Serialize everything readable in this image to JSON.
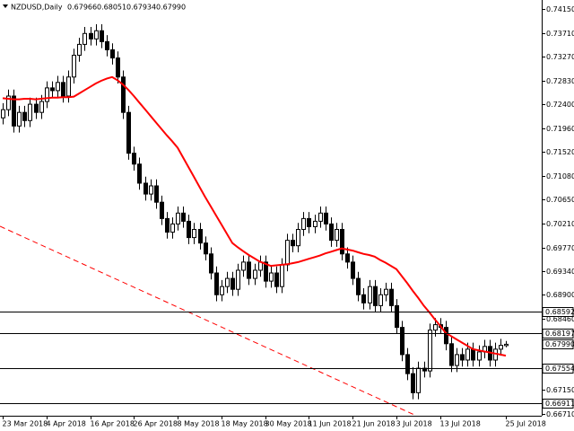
{
  "chart_data": {
    "type": "candlestick",
    "title": "NZDUSD,Daily",
    "categories": [
      "23 Mar 2018",
      null,
      null,
      null,
      null,
      null,
      null,
      null,
      "4 Apr 2018",
      null,
      null,
      null,
      null,
      null,
      null,
      null,
      "16 Apr 2018",
      null,
      null,
      null,
      null,
      null,
      null,
      null,
      "26 Apr 2018",
      null,
      null,
      null,
      null,
      null,
      null,
      null,
      "8 May 2018",
      null,
      null,
      null,
      null,
      null,
      null,
      null,
      "18 May 2018",
      null,
      null,
      null,
      null,
      null,
      null,
      null,
      "30 May 2018",
      null,
      null,
      null,
      null,
      null,
      null,
      null,
      "11 Jun 2018",
      null,
      null,
      null,
      null,
      null,
      null,
      null,
      "21 Jun 2018",
      null,
      null,
      null,
      null,
      null,
      null,
      null,
      "3 Jul 2018",
      null,
      null,
      null,
      null,
      null,
      null,
      null,
      "13 Jul 2018",
      null,
      null,
      null,
      null,
      null,
      null,
      null,
      null,
      null,
      null,
      null,
      "25 Jul 2018"
    ],
    "open": [
      0.7215,
      0.723,
      0.7255,
      0.72,
      0.7225,
      0.721,
      0.724,
      0.7225,
      0.7245,
      0.727,
      0.7265,
      0.728,
      0.7255,
      0.729,
      0.733,
      0.735,
      0.737,
      0.736,
      0.7375,
      0.7355,
      0.734,
      0.7325,
      0.729,
      0.7225,
      0.715,
      0.713,
      0.7095,
      0.7075,
      0.709,
      0.706,
      0.703,
      0.7005,
      0.702,
      0.704,
      0.7025,
      0.6995,
      0.701,
      0.6985,
      0.6965,
      0.693,
      0.689,
      0.6905,
      0.692,
      0.69,
      0.6935,
      0.695,
      0.692,
      0.6935,
      0.695,
      0.6915,
      0.693,
      0.6905,
      0.6945,
      0.699,
      0.698,
      0.701,
      0.703,
      0.7015,
      0.7025,
      0.704,
      0.702,
      0.699,
      0.701,
      0.6965,
      0.695,
      0.692,
      0.689,
      0.6875,
      0.6905,
      0.687,
      0.689,
      0.69,
      0.687,
      0.683,
      0.678,
      0.6745,
      0.671,
      0.6755,
      0.675,
      0.6825,
      0.6835,
      0.683,
      0.68,
      0.676,
      0.678,
      0.677,
      0.679,
      0.677,
      0.6785,
      0.6795,
      0.677,
      0.679,
      0.67966
    ],
    "high": [
      0.7242,
      0.7267,
      0.7267,
      0.7237,
      0.7237,
      0.7252,
      0.7252,
      0.7257,
      0.7282,
      0.7282,
      0.7292,
      0.7292,
      0.7302,
      0.7342,
      0.7362,
      0.7382,
      0.7382,
      0.7387,
      0.7387,
      0.7367,
      0.7352,
      0.7337,
      0.7302,
      0.7237,
      0.7162,
      0.7142,
      0.7107,
      0.7102,
      0.7102,
      0.7072,
      0.7042,
      0.7032,
      0.7052,
      0.7052,
      0.7037,
      0.7022,
      0.7022,
      0.6997,
      0.6977,
      0.6942,
      0.6917,
      0.6932,
      0.6932,
      0.6947,
      0.6962,
      0.6962,
      0.6947,
      0.6962,
      0.6962,
      0.6942,
      0.6942,
      0.6957,
      0.7002,
      0.7002,
      0.7022,
      0.7042,
      0.7042,
      0.7037,
      0.7052,
      0.7052,
      0.7032,
      0.7022,
      0.7022,
      0.6977,
      0.6962,
      0.6932,
      0.6902,
      0.6917,
      0.6917,
      0.6902,
      0.6912,
      0.6912,
      0.6882,
      0.6842,
      0.6792,
      0.6757,
      0.6767,
      0.6767,
      0.6837,
      0.6847,
      0.6847,
      0.6842,
      0.6812,
      0.6792,
      0.6792,
      0.6802,
      0.6802,
      0.6797,
      0.6807,
      0.6807,
      0.6802,
      0.6809,
      0.68051
    ],
    "low": [
      0.7203,
      0.7218,
      0.7188,
      0.7188,
      0.7198,
      0.7198,
      0.7213,
      0.7213,
      0.7233,
      0.7253,
      0.7253,
      0.7243,
      0.7243,
      0.7278,
      0.7318,
      0.7338,
      0.7348,
      0.7348,
      0.7343,
      0.7328,
      0.7313,
      0.7278,
      0.7213,
      0.7138,
      0.7118,
      0.7083,
      0.7063,
      0.7063,
      0.7048,
      0.7018,
      0.6993,
      0.6993,
      0.7008,
      0.7013,
      0.6983,
      0.6983,
      0.6973,
      0.6953,
      0.6918,
      0.6878,
      0.6878,
      0.6893,
      0.6888,
      0.6888,
      0.6923,
      0.6908,
      0.6908,
      0.6923,
      0.6903,
      0.6903,
      0.6893,
      0.6893,
      0.6933,
      0.6968,
      0.6968,
      0.6998,
      0.7003,
      0.7003,
      0.7013,
      0.7008,
      0.6978,
      0.6978,
      0.6953,
      0.6938,
      0.6908,
      0.6878,
      0.6863,
      0.6863,
      0.6858,
      0.6858,
      0.6878,
      0.6858,
      0.6818,
      0.6768,
      0.6733,
      0.6698,
      0.6698,
      0.6738,
      0.6738,
      0.6813,
      0.6818,
      0.6788,
      0.6748,
      0.6748,
      0.6758,
      0.6758,
      0.6758,
      0.6758,
      0.6773,
      0.6758,
      0.6758,
      0.6778,
      0.67934
    ],
    "close": [
      0.723,
      0.7255,
      0.72,
      0.7225,
      0.721,
      0.724,
      0.7225,
      0.7245,
      0.727,
      0.7265,
      0.728,
      0.7255,
      0.729,
      0.733,
      0.735,
      0.737,
      0.736,
      0.7375,
      0.7355,
      0.734,
      0.7325,
      0.729,
      0.7225,
      0.715,
      0.713,
      0.7095,
      0.7075,
      0.709,
      0.706,
      0.703,
      0.7005,
      0.702,
      0.704,
      0.7025,
      0.6995,
      0.701,
      0.6985,
      0.6965,
      0.693,
      0.689,
      0.6905,
      0.692,
      0.69,
      0.6935,
      0.695,
      0.692,
      0.6935,
      0.695,
      0.6915,
      0.693,
      0.6905,
      0.6945,
      0.699,
      0.698,
      0.701,
      0.703,
      0.7015,
      0.7025,
      0.704,
      0.702,
      0.699,
      0.701,
      0.6965,
      0.695,
      0.692,
      0.689,
      0.6875,
      0.6905,
      0.687,
      0.689,
      0.69,
      0.687,
      0.683,
      0.678,
      0.6745,
      0.671,
      0.6755,
      0.675,
      0.6825,
      0.6835,
      0.683,
      0.68,
      0.676,
      0.678,
      0.677,
      0.679,
      0.677,
      0.6785,
      0.6795,
      0.677,
      0.679,
      0.6797,
      0.6799
    ],
    "bull_color": "#ffffff",
    "bear_color": "#000000",
    "wick_color": "#000000",
    "moving_average": {
      "color": "#ff0000",
      "values": [
        0.7251,
        0.725,
        0.7249,
        0.7249,
        0.725,
        0.725,
        0.7249,
        0.725,
        0.7251,
        0.7252,
        0.7252,
        0.7253,
        0.7253,
        0.7254,
        0.726,
        0.7266,
        0.7272,
        0.7278,
        0.7283,
        0.7287,
        0.729,
        0.7284,
        0.7276,
        0.7266,
        0.7255,
        0.7243,
        0.7231,
        0.7219,
        0.7207,
        0.7195,
        0.7183,
        0.7172,
        0.716,
        0.7142,
        0.7124,
        0.7106,
        0.7088,
        0.707,
        0.7053,
        0.7036,
        0.7019,
        0.7002,
        0.6985,
        0.6977,
        0.697,
        0.6963,
        0.6957,
        0.6951,
        0.6947,
        0.6943,
        0.6944,
        0.6945,
        0.6946,
        0.6948,
        0.695,
        0.6953,
        0.6956,
        0.6959,
        0.6962,
        0.6966,
        0.6969,
        0.6972,
        0.6975,
        0.6973,
        0.6971,
        0.6968,
        0.6965,
        0.6963,
        0.696,
        0.6954,
        0.6949,
        0.6943,
        0.6937,
        0.6924,
        0.6911,
        0.6897,
        0.6884,
        0.687,
        0.6858,
        0.6845,
        0.6833,
        0.682,
        0.6814,
        0.6808,
        0.6802,
        0.6796,
        0.679,
        0.6788,
        0.6786,
        0.6784,
        0.6782,
        0.678,
        0.6778
      ]
    },
    "levels": [
      0.68592,
      0.68197,
      0.67554,
      0.66911
    ],
    "last_price": {
      "value": 0.6799,
      "label": "0.67990"
    },
    "ylim": [
      0.66677,
      0.74315
    ],
    "yticks": [
      {
        "value": 0.7415,
        "label": "0.74150"
      },
      {
        "value": 0.7371,
        "label": "0.73710"
      },
      {
        "value": 0.7327,
        "label": "0.73270"
      },
      {
        "value": 0.7283,
        "label": "0.72830"
      },
      {
        "value": 0.724,
        "label": "0.72400"
      },
      {
        "value": 0.7196,
        "label": "0.71960"
      },
      {
        "value": 0.7152,
        "label": "0.71520"
      },
      {
        "value": 0.7108,
        "label": "0.71080"
      },
      {
        "value": 0.7065,
        "label": "0.70650"
      },
      {
        "value": 0.7021,
        "label": "0.70210"
      },
      {
        "value": 0.6977,
        "label": "0.69770"
      },
      {
        "value": 0.6934,
        "label": "0.69340"
      },
      {
        "value": 0.689,
        "label": "0.68900"
      },
      {
        "value": 0.6846,
        "label": "0.68460"
      },
      {
        "value": 0.6715,
        "label": "0.67150"
      },
      {
        "value": 0.6671,
        "label": "0.66710"
      }
    ],
    "grid": false
  }
}
